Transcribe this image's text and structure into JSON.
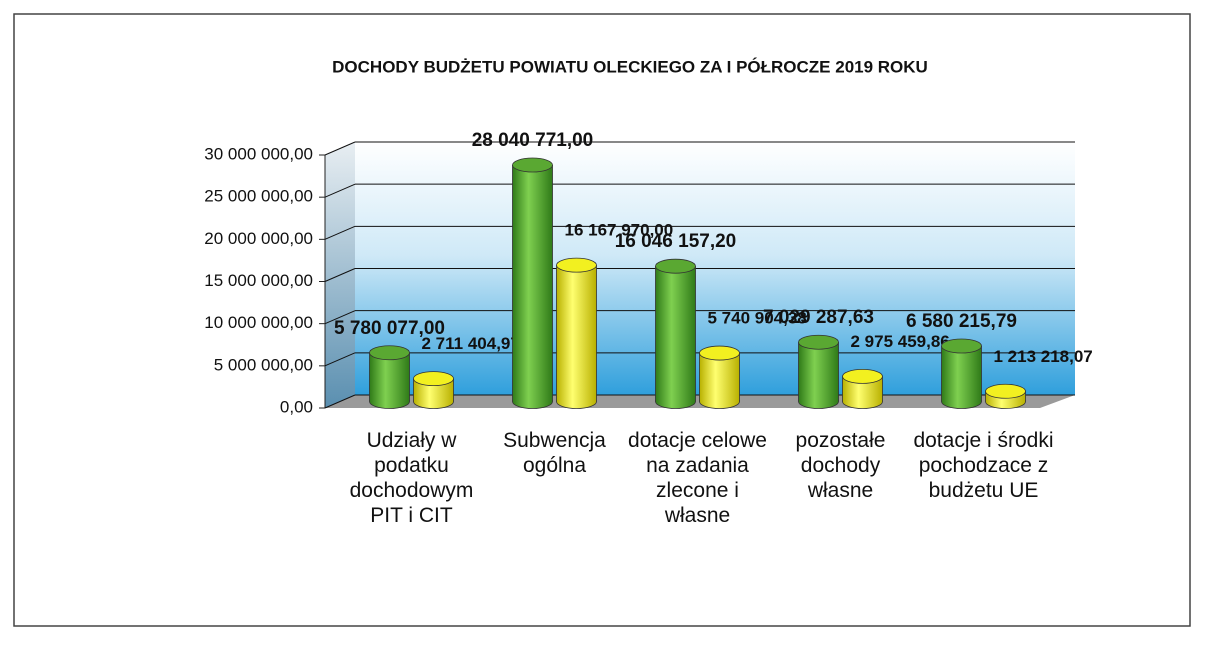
{
  "chart_data": {
    "type": "bar",
    "title": "DOCHODY BUDŻETU POWIATU OLECKIEGO ZA I PÓŁROCZE 2019 ROKU",
    "categories": [
      "Udziały w podatku dochodowym PIT i CIT",
      "Subwencja ogólna",
      "dotacje celowe na zadania zlecone i własne",
      "pozostałe dochody własne",
      "dotacje i środki pochodzace z budżetu UE"
    ],
    "series": [
      {
        "color": "#5aa832",
        "values": [
          5780077.0,
          28040771.0,
          16046157.2,
          7029287.63,
          6580215.79
        ],
        "value_labels": [
          "5 780 077,00",
          "28 040 771,00",
          "16 046 157,20",
          "7 029 287,63",
          "6 580 215,79"
        ]
      },
      {
        "color": "#f2f020",
        "values": [
          2711404.97,
          16167970.0,
          5740904.38,
          2975459.86,
          1213218.07
        ],
        "value_labels": [
          "2 711 404,97",
          "16 167 970,00",
          "5 740 904,38",
          "2 975 459,86",
          "1 213 218,07"
        ]
      }
    ],
    "ylim": [
      0,
      30000000
    ],
    "yticks": [
      {
        "value": 0,
        "label": "0,00"
      },
      {
        "value": 5000000,
        "label": "5 000 000,00"
      },
      {
        "value": 10000000,
        "label": "10 000 000,00"
      },
      {
        "value": 15000000,
        "label": "15 000 000,00"
      },
      {
        "value": 20000000,
        "label": "20 000 000,00"
      },
      {
        "value": 25000000,
        "label": "25 000 000,00"
      },
      {
        "value": 30000000,
        "label": "30 000 000,00"
      }
    ],
    "grid": true
  }
}
